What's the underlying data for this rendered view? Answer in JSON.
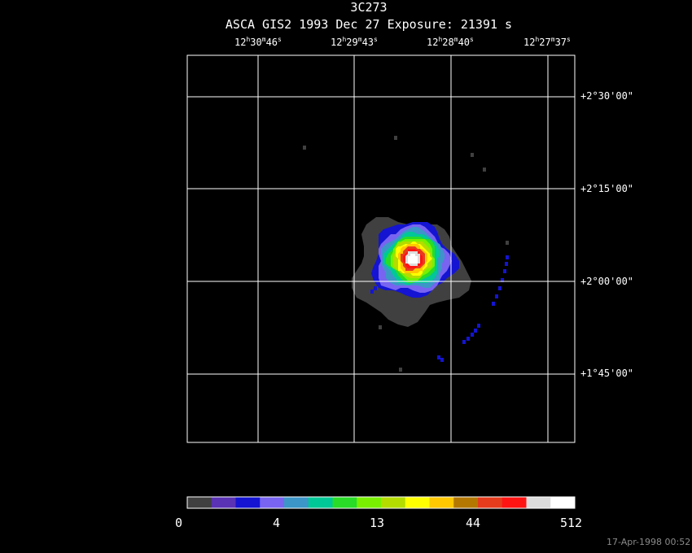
{
  "title": {
    "source": "3C273",
    "subtitle": "ASCA GIS2   1993 Dec 27    Exposure: 21391 s"
  },
  "ra_ticks": [
    {
      "h": "12",
      "m": "30",
      "s": "46"
    },
    {
      "h": "12",
      "m": "29",
      "s": "43"
    },
    {
      "h": "12",
      "m": "28",
      "s": "40"
    },
    {
      "h": "12",
      "m": "27",
      "s": "37"
    }
  ],
  "dec_ticks": [
    "+2°30'00\"",
    "+2°15'00\"",
    "+2°00'00\"",
    "+1°45'00\""
  ],
  "colorbar": {
    "labels": [
      "0",
      "4",
      "13",
      "44",
      "512"
    ],
    "colors": [
      "#404040",
      "#5a32b4",
      "#1414d2",
      "#7864f0",
      "#3c96c8",
      "#00c896",
      "#28dc28",
      "#78f000",
      "#b4dc00",
      "#ffff00",
      "#ffc800",
      "#b47800",
      "#e63c1e",
      "#ff1414",
      "#dcdcdc",
      "#ffffff"
    ]
  },
  "timestamp": "17-Apr-1998 00:52"
}
